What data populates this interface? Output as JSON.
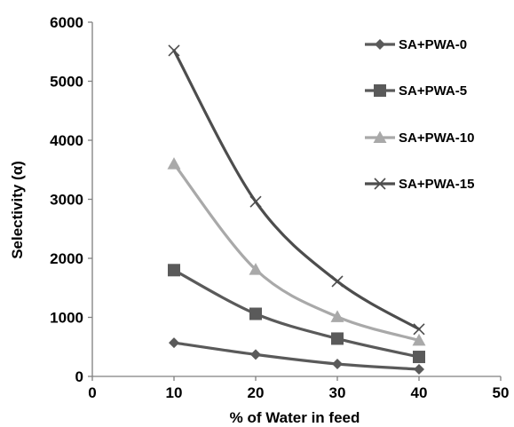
{
  "chart_data": {
    "type": "line",
    "title": "",
    "xlabel": "% of Water in feed",
    "ylabel": "Selectivity (α)",
    "xlim": [
      0,
      50
    ],
    "ylim": [
      0,
      6000
    ],
    "xticks": [
      0,
      10,
      20,
      30,
      40,
      50
    ],
    "yticks": [
      0,
      1000,
      2000,
      3000,
      4000,
      5000,
      6000
    ],
    "grid": false,
    "legend_position": "top-right",
    "x": [
      10,
      20,
      30,
      40
    ],
    "series": [
      {
        "name": "SA+PWA-0",
        "marker": "diamond",
        "color": "#5a5a5a",
        "values": [
          570,
          370,
          210,
          120
        ]
      },
      {
        "name": "SA+PWA-5",
        "marker": "square",
        "color": "#5a5a5a",
        "values": [
          1800,
          1060,
          640,
          330
        ]
      },
      {
        "name": "SA+PWA-10",
        "marker": "triangle",
        "color": "#a9a9a9",
        "values": [
          3600,
          1810,
          1010,
          610
        ]
      },
      {
        "name": "SA+PWA-15",
        "marker": "x",
        "color": "#4d4d4d",
        "values": [
          5520,
          2960,
          1610,
          800
        ]
      }
    ]
  }
}
